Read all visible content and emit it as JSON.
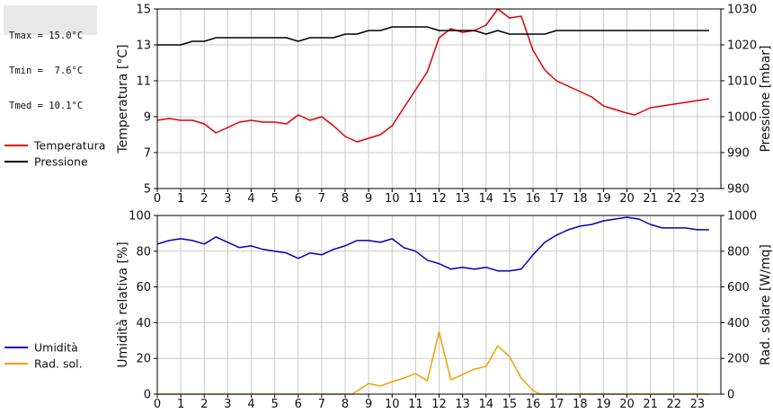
{
  "stats": [
    {
      "key": "Tmax",
      "value": "15.0°C"
    },
    {
      "key": "Tmin",
      "value": " 7.6°C"
    },
    {
      "key": "Tmed",
      "value": "10.1°C"
    }
  ],
  "colors": {
    "temperature": "#dd0000",
    "pressure": "#000000",
    "humidity": "#0000bb",
    "radiation": "#eea000",
    "grid": "#c9c9c9",
    "stats_bg": "#e8e8e8"
  },
  "chart_data": [
    {
      "type": "line",
      "xlim": [
        0,
        24
      ],
      "x_ticks": [
        "0",
        "1",
        "2",
        "3",
        "4",
        "5",
        "6",
        "7",
        "8",
        "9",
        "10",
        "11",
        "12",
        "13",
        "14",
        "15",
        "16",
        "17",
        "18",
        "19",
        "20",
        "21",
        "22",
        "23"
      ],
      "ylabel": "Temperatura [°C]",
      "ylim": [
        5,
        15
      ],
      "y_ticks": [
        "5",
        "7",
        "9",
        "11",
        "13",
        "15"
      ],
      "y2label": "Pressione [mbar]",
      "y2lim": [
        980,
        1030
      ],
      "y2_ticks": [
        "980",
        "990",
        "1000",
        "1010",
        "1020",
        "1030"
      ],
      "grid": true,
      "legend_position": "left",
      "series": [
        {
          "name": "Temperatura",
          "axis": "left",
          "x": [
            0,
            0.5,
            1,
            1.5,
            2,
            2.5,
            3,
            3.5,
            4,
            4.5,
            5,
            5.5,
            6,
            6.5,
            7,
            7.5,
            8,
            8.5,
            9,
            9.5,
            10,
            10.5,
            11,
            11.5,
            12,
            12.5,
            13,
            13.5,
            14,
            14.5,
            15,
            15.5,
            16,
            16.5,
            17,
            17.5,
            18,
            18.5,
            19,
            19.5,
            20,
            20.33,
            20.67,
            21,
            21.5,
            22,
            22.5,
            23,
            23.5
          ],
          "values": [
            8.8,
            8.9,
            8.8,
            8.8,
            8.6,
            8.1,
            8.4,
            8.7,
            8.8,
            8.7,
            8.7,
            8.6,
            9.1,
            8.8,
            9.0,
            8.5,
            7.9,
            7.6,
            7.8,
            8.0,
            8.5,
            9.5,
            10.5,
            11.5,
            13.4,
            13.9,
            13.7,
            13.8,
            14.1,
            15.0,
            14.5,
            14.6,
            12.7,
            11.6,
            11.0,
            10.7,
            10.4,
            10.1,
            9.6,
            9.4,
            9.2,
            9.1,
            9.3,
            9.5,
            9.6,
            9.7,
            9.8,
            9.9,
            10.0
          ]
        },
        {
          "name": "Pressione",
          "axis": "right",
          "x": [
            0,
            1,
            1.5,
            2,
            2.5,
            3,
            3.5,
            4,
            4.5,
            5,
            5.5,
            6,
            6.5,
            7,
            7.5,
            8,
            8.5,
            9,
            9.5,
            10,
            10.5,
            11,
            11.5,
            12,
            12.5,
            13,
            13.5,
            14,
            14.5,
            15,
            15.5,
            16,
            16.5,
            17,
            18,
            19,
            20,
            21,
            22,
            23,
            23.5
          ],
          "values": [
            1020,
            1020,
            1021,
            1021,
            1022,
            1022,
            1022,
            1022,
            1022,
            1022,
            1022,
            1021,
            1022,
            1022,
            1022,
            1023,
            1023,
            1024,
            1024,
            1025,
            1025,
            1025,
            1025,
            1024,
            1024,
            1024,
            1024,
            1023,
            1024,
            1023,
            1023,
            1023,
            1023,
            1024,
            1024,
            1024,
            1024,
            1024,
            1024,
            1024,
            1024
          ]
        }
      ]
    },
    {
      "type": "line",
      "xlim": [
        0,
        24
      ],
      "x_ticks": [
        "0",
        "1",
        "2",
        "3",
        "4",
        "5",
        "6",
        "7",
        "8",
        "9",
        "10",
        "11",
        "12",
        "13",
        "14",
        "15",
        "16",
        "17",
        "18",
        "19",
        "20",
        "21",
        "22",
        "23"
      ],
      "ylabel": "Umidità relativa [%]",
      "ylim": [
        0,
        100
      ],
      "y_ticks": [
        "0",
        "20",
        "40",
        "60",
        "80",
        "100"
      ],
      "y2label": "Rad. solare [W/mq]",
      "y2lim": [
        0,
        1000
      ],
      "y2_ticks": [
        "0",
        "200",
        "400",
        "600",
        "800",
        "1000"
      ],
      "grid": true,
      "legend_position": "left",
      "series": [
        {
          "name": "Umidità",
          "axis": "left",
          "x": [
            0,
            0.5,
            1,
            1.5,
            2,
            2.5,
            3,
            3.5,
            4,
            4.5,
            5,
            5.5,
            6,
            6.5,
            7,
            7.5,
            8,
            8.5,
            9,
            9.5,
            10,
            10.5,
            11,
            11.5,
            12,
            12.5,
            13,
            13.5,
            14,
            14.5,
            15,
            15.5,
            16,
            16.5,
            17,
            17.5,
            18,
            18.5,
            19,
            19.5,
            20,
            20.5,
            21,
            21.5,
            22,
            22.5,
            23,
            23.5
          ],
          "values": [
            84,
            86,
            87,
            86,
            84,
            88,
            85,
            82,
            83,
            81,
            80,
            79,
            76,
            79,
            78,
            81,
            83,
            86,
            86,
            85,
            87,
            82,
            80,
            75,
            73,
            70,
            71,
            70,
            71,
            69,
            69,
            70,
            78,
            85,
            89,
            92,
            94,
            95,
            97,
            98,
            99,
            98,
            95,
            93,
            93,
            93,
            92,
            92
          ]
        },
        {
          "name": "Rad. sol.",
          "axis": "right",
          "x": [
            0,
            1,
            2,
            3,
            4,
            5,
            6,
            7,
            8,
            8.3,
            9,
            9.5,
            10,
            10.5,
            11,
            11.5,
            12,
            12.5,
            13,
            13.5,
            14,
            14.5,
            15,
            15.5,
            16,
            16.3,
            17,
            18,
            19,
            20,
            21,
            22,
            23,
            23.5
          ],
          "values": [
            0,
            0,
            0,
            0,
            0,
            0,
            0,
            0,
            0,
            0,
            60,
            45,
            70,
            90,
            115,
            75,
            350,
            80,
            110,
            140,
            155,
            270,
            210,
            90,
            20,
            0,
            0,
            0,
            0,
            0,
            0,
            0,
            0,
            0
          ]
        }
      ]
    }
  ]
}
